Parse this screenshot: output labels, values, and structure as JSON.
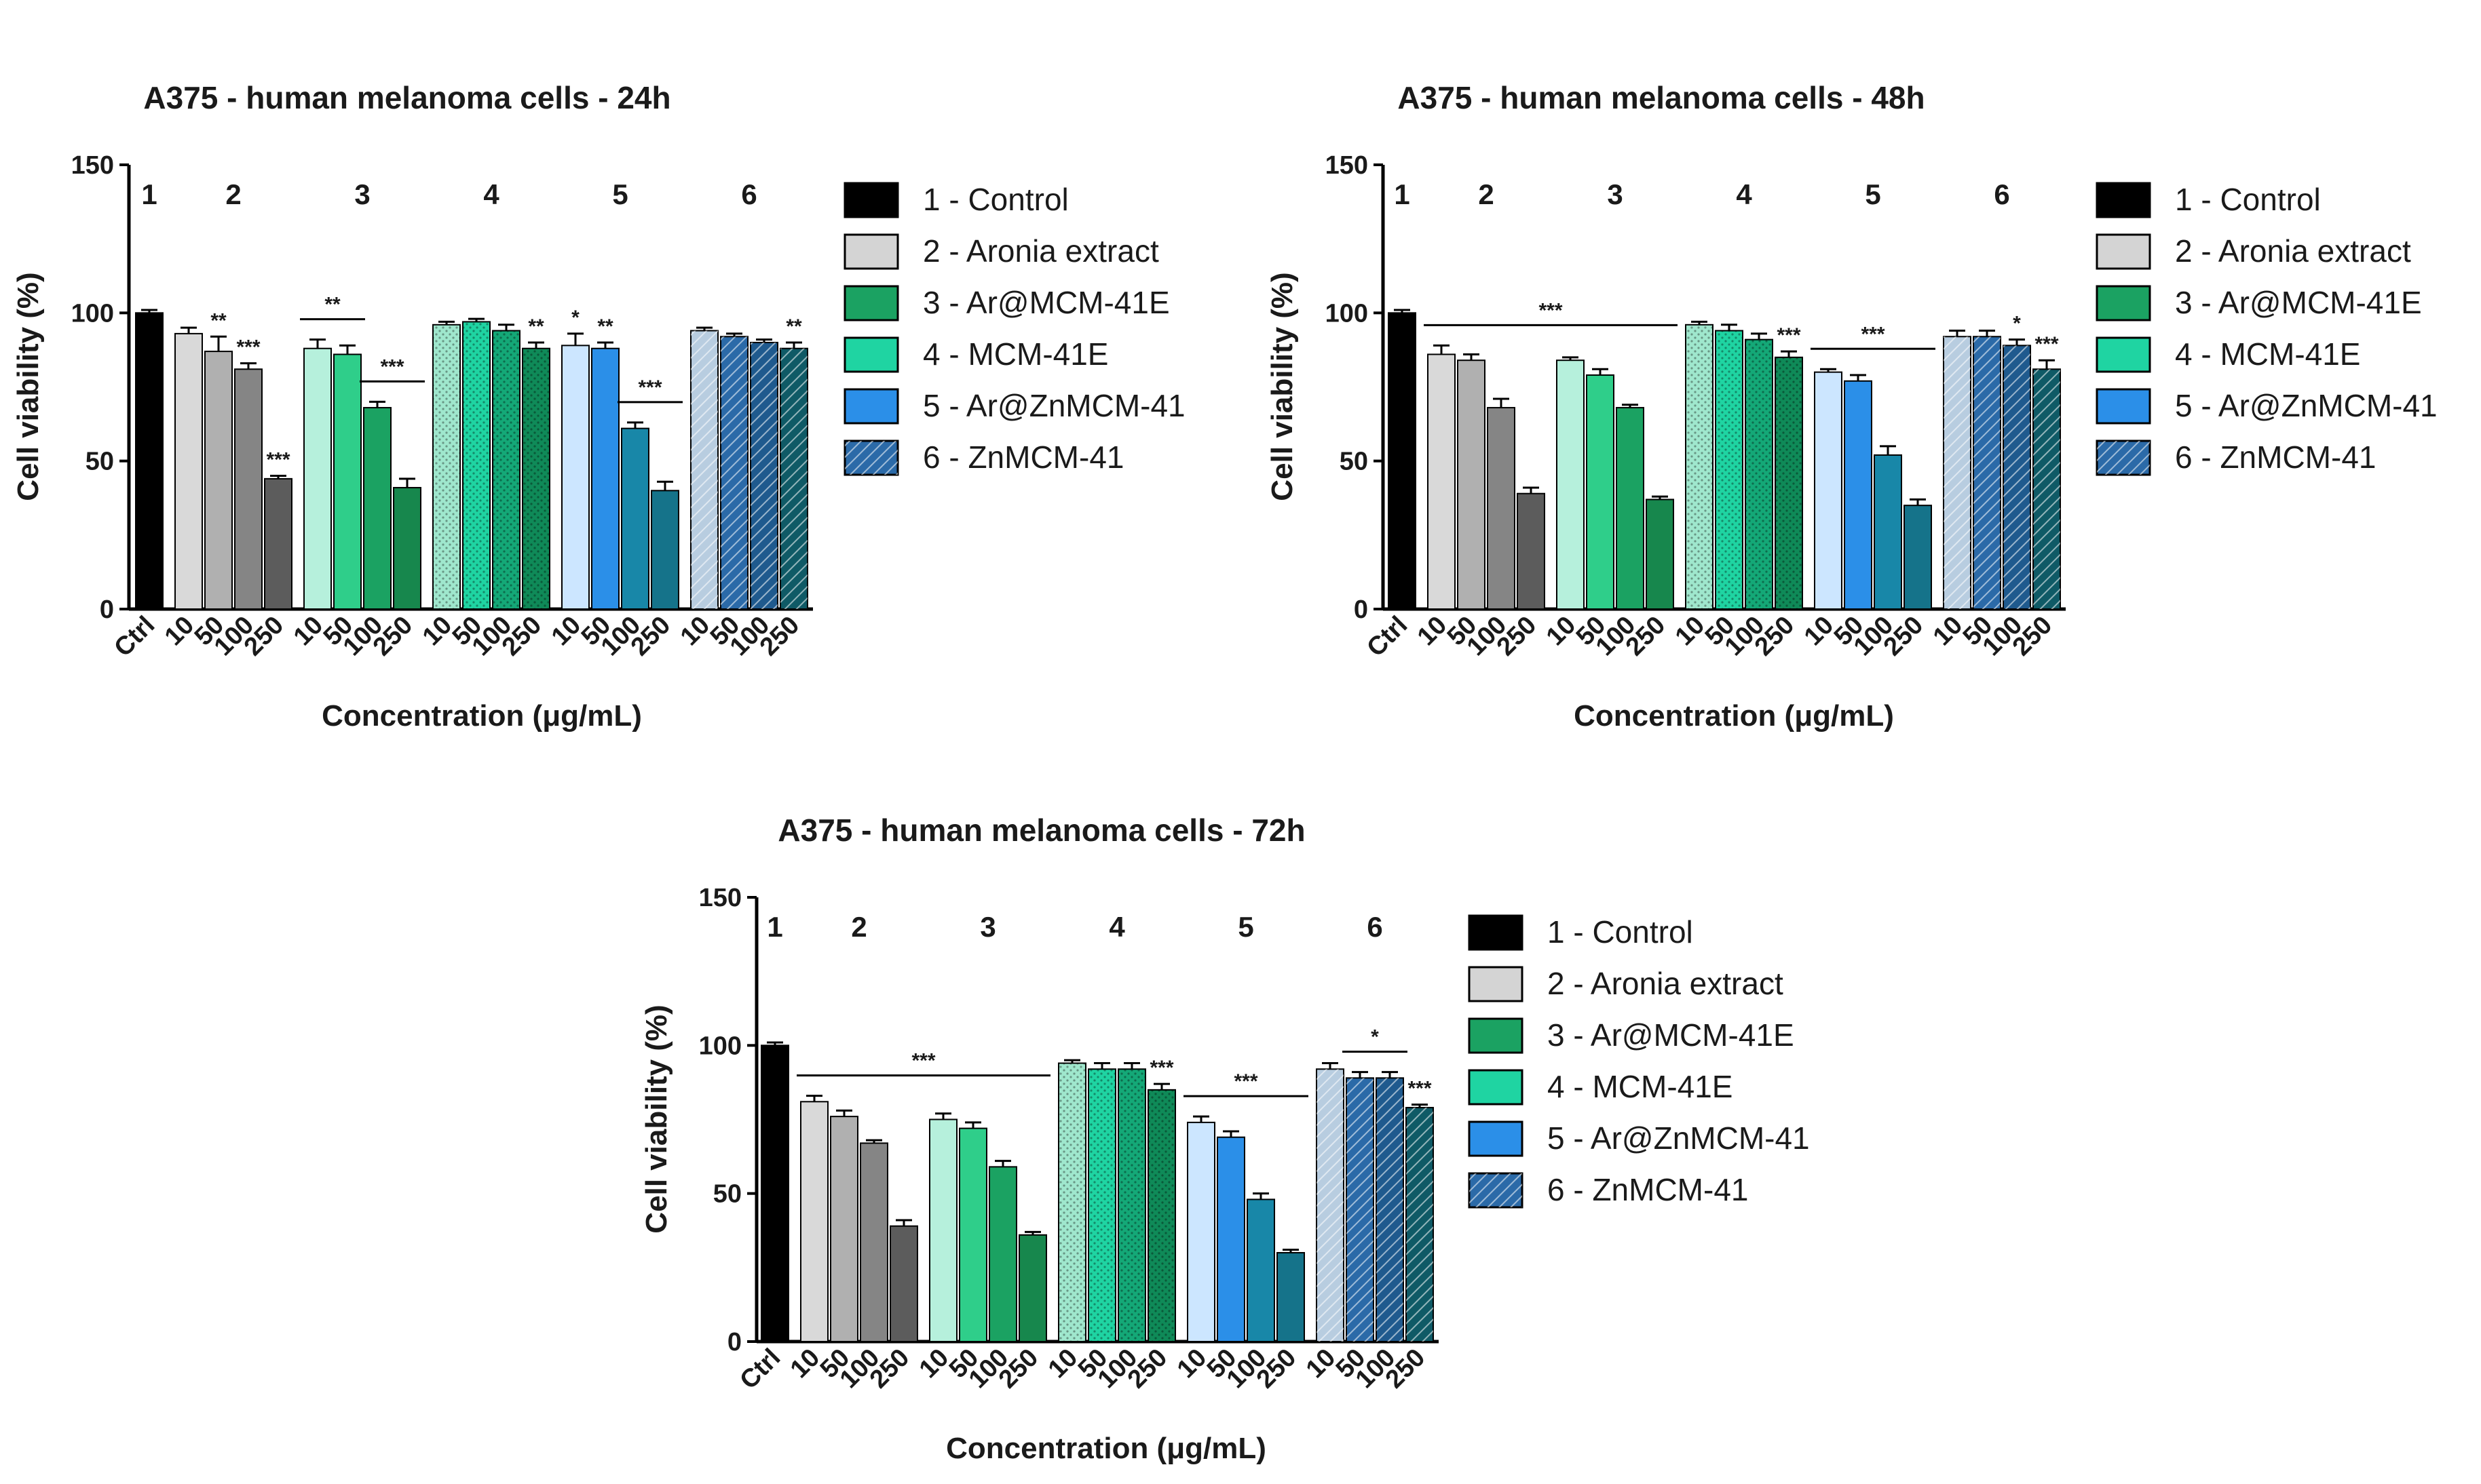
{
  "colors": {
    "control": "#000000",
    "aronia": [
      "#d9d9d9",
      "#b0b0b0",
      "#858585",
      "#5c5c5c"
    ],
    "armcm": [
      "#b6f0dc",
      "#2fce8a",
      "#1ba262",
      "#17874d"
    ],
    "mcm": [
      "#9fe7cd",
      "#1fd4a2",
      "#14a877",
      "#0f8a58"
    ],
    "arzn": [
      "#cce6ff",
      "#2b8fe8",
      "#1887a8",
      "#15738a"
    ],
    "zn": [
      "#b8cde0",
      "#2b6aa8",
      "#1f5a8e",
      "#0f5a66"
    ]
  },
  "legend": {
    "items": [
      {
        "label": "1 - Control",
        "color": "#000000",
        "hatch": false
      },
      {
        "label": "2 - Aronia extract",
        "color": "#d4d4d4",
        "hatch": false
      },
      {
        "label": "3 - Ar@MCM-41E",
        "color": "#1ba262",
        "hatch": false
      },
      {
        "label": "4 - MCM-41E",
        "color": "#1fd4a2",
        "hatch": false
      },
      {
        "label": "5 - Ar@ZnMCM-41",
        "color": "#2b8fe8",
        "hatch": false
      },
      {
        "label": "6 - ZnMCM-41",
        "color": "#2b6aa8",
        "hatch": true
      }
    ]
  },
  "chart_data": [
    {
      "type": "bar",
      "title": "A375 - human melanoma cells - 24h",
      "xlabel": "Concentration (μg/mL)",
      "ylabel": "Cell viability (%)",
      "ylim": [
        0,
        150
      ],
      "yticks": [
        "0",
        "50",
        "100",
        "150"
      ],
      "group_labels": [
        "1",
        "2",
        "3",
        "4",
        "5",
        "6"
      ],
      "categories": [
        "Ctrl",
        "10",
        "50",
        "100",
        "250",
        "10",
        "50",
        "100",
        "250",
        "10",
        "50",
        "100",
        "250",
        "10",
        "50",
        "100",
        "250",
        "10",
        "50",
        "100",
        "250"
      ],
      "values": [
        100,
        93,
        87,
        81,
        44,
        88,
        86,
        68,
        41,
        96,
        97,
        94,
        88,
        89,
        88,
        61,
        40,
        94,
        92,
        90,
        88
      ],
      "errors": [
        1,
        2,
        5,
        2,
        1,
        3,
        3,
        2,
        3,
        1,
        1,
        2,
        2,
        4,
        2,
        2,
        3,
        1,
        1,
        1,
        2
      ],
      "annotations": [
        {
          "text": "**",
          "bar": 2
        },
        {
          "text": "***",
          "bar": 3
        },
        {
          "text": "***",
          "bar": 4
        },
        {
          "text": "**",
          "bar_from": 5,
          "bar_to": 6,
          "bracket": true
        },
        {
          "text": "***",
          "bar_from": 7,
          "bar_to": 8,
          "bracket": true
        },
        {
          "text": "**",
          "bar": 12
        },
        {
          "text": "*",
          "bar": 13
        },
        {
          "text": "**",
          "bar": 14
        },
        {
          "text": "***",
          "bar_from": 15,
          "bar_to": 16,
          "bracket": true
        },
        {
          "text": "**",
          "bar": 20
        }
      ]
    },
    {
      "type": "bar",
      "title": "A375 - human melanoma cells - 48h",
      "xlabel": "Concentration (μg/mL)",
      "ylabel": "Cell viability (%)",
      "ylim": [
        0,
        150
      ],
      "yticks": [
        "0",
        "50",
        "100",
        "150"
      ],
      "group_labels": [
        "1",
        "2",
        "3",
        "4",
        "5",
        "6"
      ],
      "categories": [
        "Ctrl",
        "10",
        "50",
        "100",
        "250",
        "10",
        "50",
        "100",
        "250",
        "10",
        "50",
        "100",
        "250",
        "10",
        "50",
        "100",
        "250",
        "10",
        "50",
        "100",
        "250"
      ],
      "values": [
        100,
        86,
        84,
        68,
        39,
        84,
        79,
        68,
        37,
        96,
        94,
        91,
        85,
        80,
        77,
        52,
        35,
        92,
        92,
        89,
        81
      ],
      "errors": [
        1,
        3,
        2,
        3,
        2,
        1,
        2,
        1,
        1,
        1,
        2,
        2,
        2,
        1,
        2,
        3,
        2,
        2,
        2,
        2,
        3
      ],
      "annotations": [
        {
          "text": "***",
          "bar_from": 1,
          "bar_to": 8,
          "bracket": true
        },
        {
          "text": "***",
          "bar": 12
        },
        {
          "text": "***",
          "bar_from": 13,
          "bar_to": 16,
          "bracket": true
        },
        {
          "text": "*",
          "bar": 19
        },
        {
          "text": "***",
          "bar": 20
        }
      ]
    },
    {
      "type": "bar",
      "title": "A375 - human melanoma cells - 72h",
      "xlabel": "Concentration (μg/mL)",
      "ylabel": "Cell viability (%)",
      "ylim": [
        0,
        150
      ],
      "yticks": [
        "0",
        "50",
        "100",
        "150"
      ],
      "group_labels": [
        "1",
        "2",
        "3",
        "4",
        "5",
        "6"
      ],
      "categories": [
        "Ctrl",
        "10",
        "50",
        "100",
        "250",
        "10",
        "50",
        "100",
        "250",
        "10",
        "50",
        "100",
        "250",
        "10",
        "50",
        "100",
        "250",
        "10",
        "50",
        "100",
        "250"
      ],
      "values": [
        100,
        81,
        76,
        67,
        39,
        75,
        72,
        59,
        36,
        94,
        92,
        92,
        85,
        74,
        69,
        48,
        30,
        92,
        89,
        89,
        79
      ],
      "errors": [
        1,
        2,
        2,
        1,
        2,
        2,
        2,
        2,
        1,
        1,
        2,
        2,
        2,
        2,
        2,
        2,
        1,
        2,
        2,
        2,
        1
      ],
      "annotations": [
        {
          "text": "***",
          "bar_from": 1,
          "bar_to": 8,
          "bracket": true
        },
        {
          "text": "***",
          "bar": 12
        },
        {
          "text": "***",
          "bar_from": 13,
          "bar_to": 16,
          "bracket": true
        },
        {
          "text": "*",
          "bar_from": 18,
          "bar_to": 19,
          "bracket": true
        },
        {
          "text": "***",
          "bar": 20
        }
      ]
    }
  ]
}
